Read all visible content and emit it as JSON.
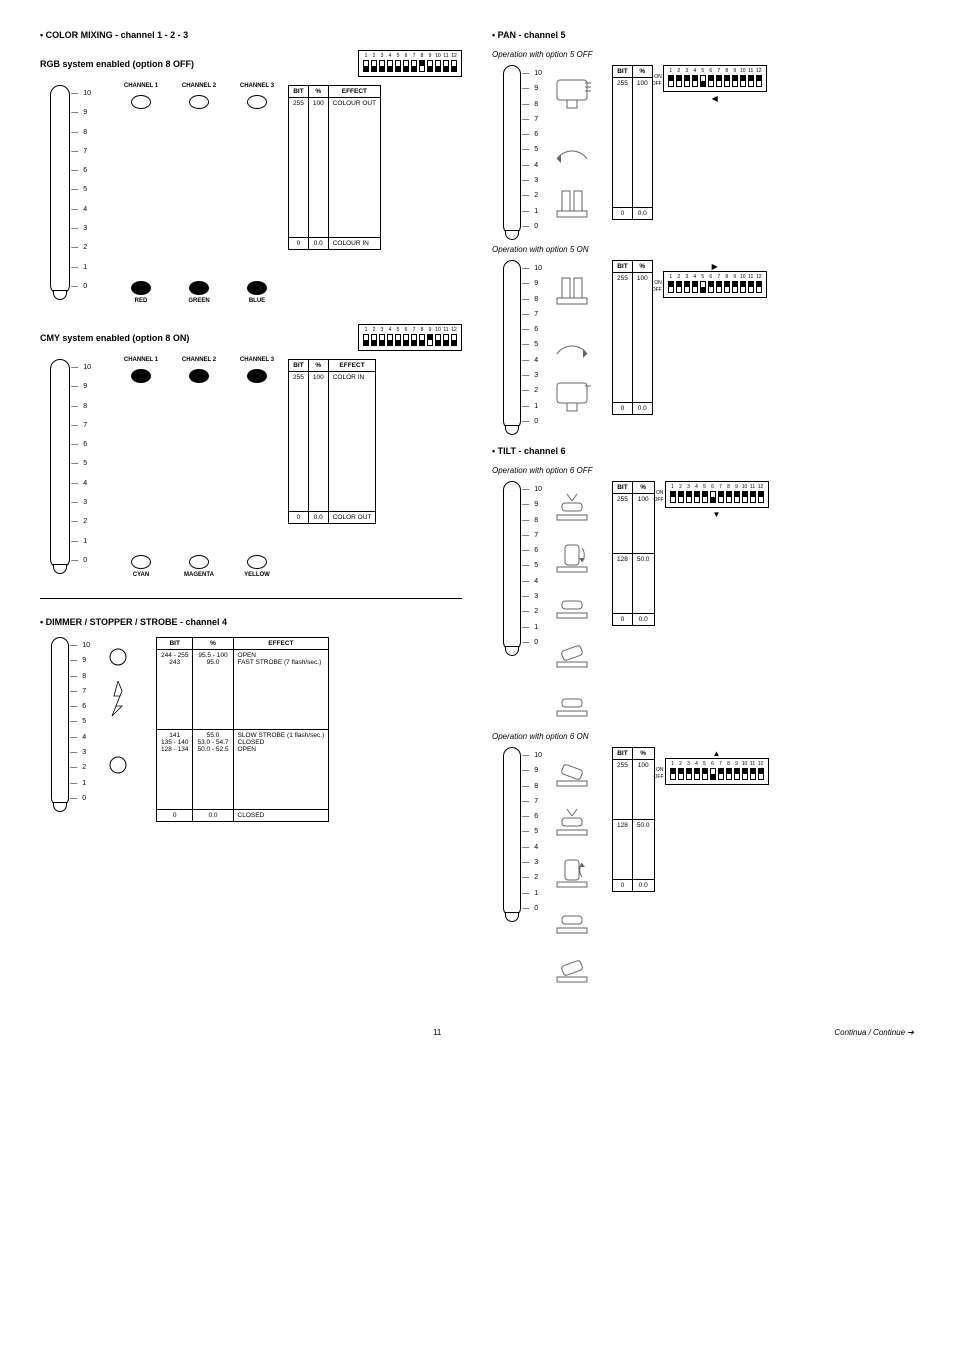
{
  "left": {
    "color_mixing_title": "• COLOR MIXING - channel 1 - 2 - 3",
    "rgb": {
      "heading": "RGB system enabled (option 8 OFF)",
      "dip_on": [
        false,
        false,
        false,
        false,
        false,
        false,
        false,
        true,
        false,
        false,
        false,
        false
      ],
      "channels": [
        "CHANNEL 1",
        "CHANNEL 2",
        "CHANNEL 3"
      ],
      "bottom_labels": [
        "RED",
        "GREEN",
        "BLUE"
      ],
      "top_filled": false,
      "bottom_filled": true,
      "table": {
        "headers": [
          "BIT",
          "%",
          "EFFECT"
        ],
        "rows": [
          [
            "255",
            "100",
            "COLOUR OUT"
          ],
          [
            "0",
            "0.0",
            "COLOUR IN"
          ]
        ]
      }
    },
    "cmy": {
      "heading": "CMY system enabled (option 8 ON)",
      "dip_on": [
        false,
        false,
        false,
        false,
        false,
        false,
        false,
        false,
        true,
        false,
        false,
        false
      ],
      "dip_variant_8_up": true,
      "channels": [
        "CHANNEL 1",
        "CHANNEL 2",
        "CHANNEL 3"
      ],
      "bottom_labels": [
        "CYAN",
        "MAGENTA",
        "YELLOW"
      ],
      "top_filled": true,
      "bottom_filled": false,
      "table": {
        "headers": [
          "BIT",
          "%",
          "EFFECT"
        ],
        "rows": [
          [
            "255",
            "100",
            "COLOR IN"
          ],
          [
            "0",
            "0.0",
            "COLOR OUT"
          ]
        ]
      }
    },
    "dimmer": {
      "title": "• DIMMER / STOPPER / STROBE - channel 4",
      "table": {
        "headers": [
          "BIT",
          "%",
          "EFFECT"
        ],
        "top": [
          [
            "244 - 255",
            "95.5 - 100",
            "OPEN"
          ],
          [
            "243",
            "95.0",
            "FAST STROBE (7 flash/sec.)"
          ]
        ],
        "mid": [
          [
            "141",
            "55.0",
            "SLOW STROBE (1 flash/sec.)"
          ],
          [
            "135 - 140",
            "53.0 - 54.7",
            "CLOSED"
          ],
          [
            "128 - 134",
            "50.0 - 52.5",
            "OPEN"
          ]
        ],
        "bot": [
          [
            "0",
            "0.0",
            "CLOSED"
          ]
        ]
      }
    }
  },
  "right": {
    "pan": {
      "title": "• PAN - channel 5",
      "off_sub": "Operation with option 5 OFF",
      "on_sub": "Operation with option 5 ON",
      "dip_off_arrow": "◀",
      "dip_on_arrow": "▶",
      "dip_off": [
        true,
        true,
        true,
        true,
        false,
        true,
        true,
        true,
        true,
        true,
        true,
        true
      ],
      "dip_on": [
        true,
        true,
        true,
        true,
        false,
        true,
        true,
        true,
        true,
        true,
        true,
        true
      ],
      "table": {
        "headers": [
          "BIT",
          "%"
        ],
        "rows": [
          [
            "255",
            "100"
          ],
          [
            "0",
            "0.0"
          ]
        ]
      }
    },
    "tilt": {
      "title": "• TILT - channel 6",
      "off_sub": "Operation with option 6 OFF",
      "on_sub": "Operation with option 6 ON",
      "dip_off_arrow": "▼",
      "dip_on_arrow": "▲",
      "dip_off": [
        true,
        true,
        true,
        true,
        true,
        false,
        true,
        true,
        true,
        true,
        true,
        true
      ],
      "dip_on": [
        true,
        true,
        true,
        true,
        true,
        false,
        true,
        true,
        true,
        true,
        true,
        true
      ],
      "table": {
        "headers": [
          "BIT",
          "%"
        ],
        "rows": [
          [
            "255",
            "100"
          ],
          [
            "128",
            "50.0"
          ],
          [
            "0",
            "0.0"
          ]
        ]
      }
    }
  },
  "slider_ticks": [
    "10",
    "9",
    "8",
    "7",
    "6",
    "5",
    "4",
    "3",
    "2",
    "1",
    "0"
  ],
  "page_number": "11",
  "continue_text": "Continua / Continue  ➔",
  "dip_numbers": [
    "1",
    "2",
    "3",
    "4",
    "5",
    "6",
    "7",
    "8",
    "9",
    "10",
    "11",
    "12"
  ],
  "on_label": "ON",
  "off_label": "OFF"
}
